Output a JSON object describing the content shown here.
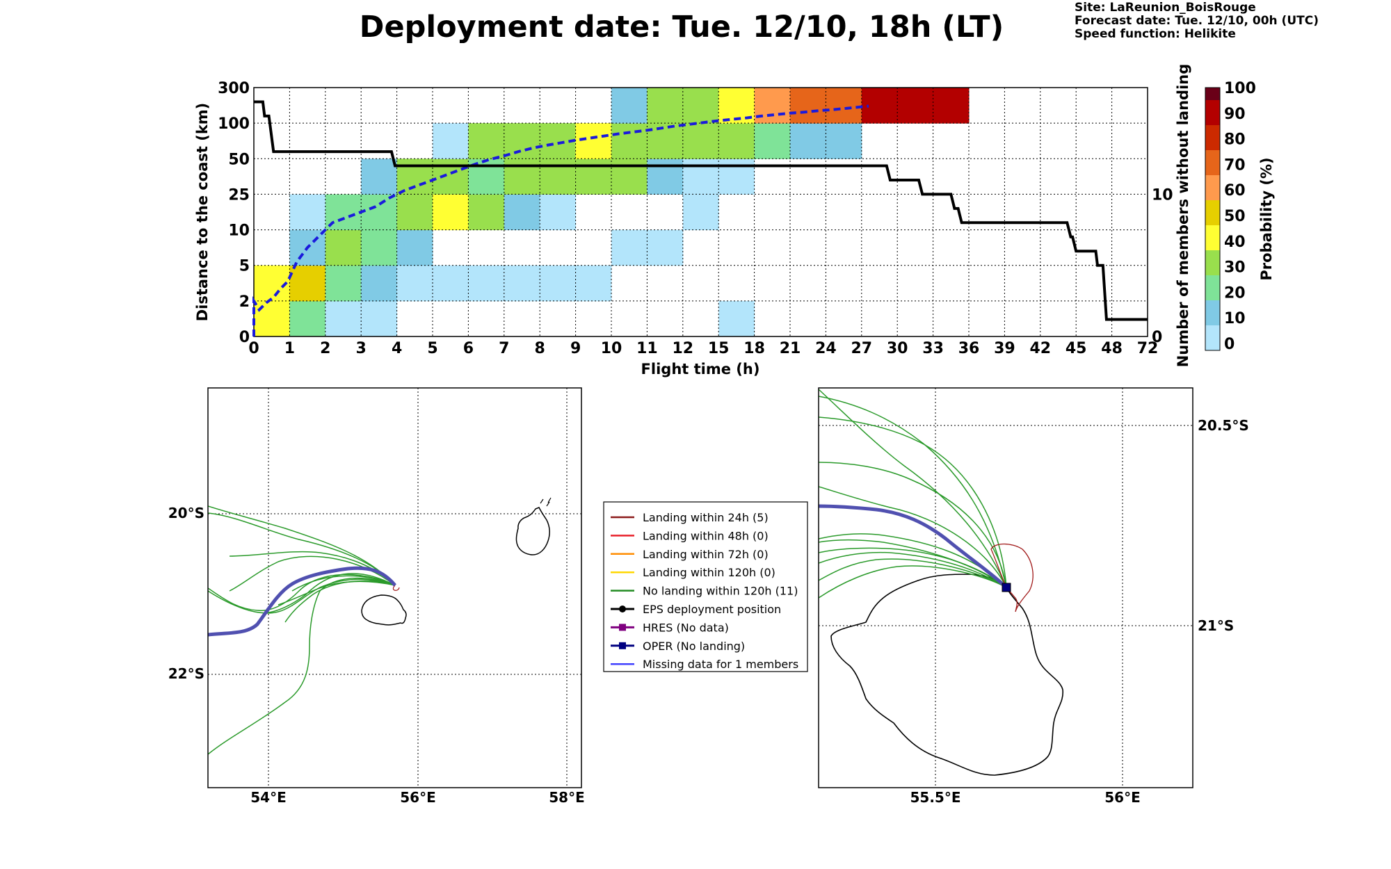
{
  "header": {
    "title": "Deployment date: Tue. 12/10, 18h (LT)",
    "site": "Site: LaReunion_BoisRouge",
    "forecast": "Forecast date: Tue. 12/10, 00h (UTC)",
    "speed": "Speed function: Helikite"
  },
  "chart_data": [
    {
      "type": "heatmap",
      "xlabel": "Flight time (h)",
      "ylabel": "Distance to the coast (km)",
      "y2label": "Number of members without landing",
      "x_ticks": [
        "0",
        "1",
        "2",
        "3",
        "4",
        "5",
        "6",
        "7",
        "8",
        "9",
        "10",
        "11",
        "12",
        "15",
        "18",
        "21",
        "24",
        "27",
        "30",
        "33",
        "36",
        "39",
        "42",
        "45",
        "48",
        "72"
      ],
      "y_ticks": [
        "0",
        "2",
        "5",
        "10",
        "25",
        "50",
        "100",
        "300"
      ],
      "y2_ticks": [
        "0",
        "10"
      ],
      "y2_range": [
        0,
        17.5
      ],
      "colorbar": {
        "label": "Probability (%)",
        "ticks": [
          "0",
          "10",
          "20",
          "30",
          "40",
          "50",
          "60",
          "70",
          "80",
          "90",
          "100"
        ],
        "colors": [
          "#b3e5fb",
          "#80cae5",
          "#7fe398",
          "#99df4d",
          "#ffff33",
          "#e6cf00",
          "#ff9a4d",
          "#e6651a",
          "#cc2a00",
          "#b30000",
          "#6a0018"
        ]
      },
      "cells": [
        {
          "x": 0,
          "y": 0,
          "p": 40
        },
        {
          "x": 0,
          "y": 1,
          "p": 40
        },
        {
          "x": 1,
          "y": 0,
          "p": 20
        },
        {
          "x": 1,
          "y": 1,
          "p": 50
        },
        {
          "x": 1,
          "y": 2,
          "p": 10
        },
        {
          "x": 1,
          "y": 3,
          "p": 0
        },
        {
          "x": 2,
          "y": 0,
          "p": 0
        },
        {
          "x": 2,
          "y": 1,
          "p": 20
        },
        {
          "x": 2,
          "y": 2,
          "p": 30
        },
        {
          "x": 2,
          "y": 3,
          "p": 20
        },
        {
          "x": 3,
          "y": 0,
          "p": 0
        },
        {
          "x": 3,
          "y": 1,
          "p": 10
        },
        {
          "x": 3,
          "y": 2,
          "p": 20
        },
        {
          "x": 3,
          "y": 3,
          "p": 20
        },
        {
          "x": 3,
          "y": 4,
          "p": 10
        },
        {
          "x": 4,
          "y": 1,
          "p": 0
        },
        {
          "x": 4,
          "y": 2,
          "p": 10
        },
        {
          "x": 4,
          "y": 3,
          "p": 30
        },
        {
          "x": 4,
          "y": 4,
          "p": 30
        },
        {
          "x": 5,
          "y": 1,
          "p": 0
        },
        {
          "x": 5,
          "y": 3,
          "p": 40
        },
        {
          "x": 5,
          "y": 4,
          "p": 30
        },
        {
          "x": 5,
          "y": 5,
          "p": 0
        },
        {
          "x": 6,
          "y": 1,
          "p": 0
        },
        {
          "x": 6,
          "y": 3,
          "p": 30
        },
        {
          "x": 6,
          "y": 4,
          "p": 20
        },
        {
          "x": 6,
          "y": 5,
          "p": 30
        },
        {
          "x": 7,
          "y": 1,
          "p": 0
        },
        {
          "x": 7,
          "y": 3,
          "p": 10
        },
        {
          "x": 7,
          "y": 4,
          "p": 30
        },
        {
          "x": 7,
          "y": 5,
          "p": 30
        },
        {
          "x": 8,
          "y": 1,
          "p": 0
        },
        {
          "x": 8,
          "y": 3,
          "p": 0
        },
        {
          "x": 8,
          "y": 4,
          "p": 30
        },
        {
          "x": 8,
          "y": 5,
          "p": 30
        },
        {
          "x": 9,
          "y": 1,
          "p": 0
        },
        {
          "x": 9,
          "y": 4,
          "p": 30
        },
        {
          "x": 9,
          "y": 5,
          "p": 40
        },
        {
          "x": 10,
          "y": 2,
          "p": 0
        },
        {
          "x": 10,
          "y": 4,
          "p": 30
        },
        {
          "x": 10,
          "y": 5,
          "p": 30
        },
        {
          "x": 10,
          "y": 6,
          "p": 10
        },
        {
          "x": 11,
          "y": 2,
          "p": 0
        },
        {
          "x": 11,
          "y": 4,
          "p": 10
        },
        {
          "x": 11,
          "y": 5,
          "p": 30
        },
        {
          "x": 11,
          "y": 6,
          "p": 30
        },
        {
          "x": 12,
          "y": 3,
          "p": 0
        },
        {
          "x": 12,
          "y": 4,
          "p": 0
        },
        {
          "x": 12,
          "y": 5,
          "p": 30
        },
        {
          "x": 12,
          "y": 6,
          "p": 30
        },
        {
          "x": 13,
          "y": 0,
          "p": 0
        },
        {
          "x": 13,
          "y": 4,
          "p": 0
        },
        {
          "x": 13,
          "y": 5,
          "p": 30
        },
        {
          "x": 13,
          "y": 6,
          "p": 40
        },
        {
          "x": 14,
          "y": 5,
          "p": 20
        },
        {
          "x": 14,
          "y": 6,
          "p": 60
        },
        {
          "x": 15,
          "y": 5,
          "p": 10
        },
        {
          "x": 15,
          "y": 6,
          "p": 70
        },
        {
          "x": 16,
          "y": 5,
          "p": 10
        },
        {
          "x": 16,
          "y": 6,
          "p": 70
        },
        {
          "x": 17,
          "y": 6,
          "p": 90
        },
        {
          "x": 18,
          "y": 6,
          "p": 90
        },
        {
          "x": 19,
          "y": 6,
          "p": 90
        }
      ],
      "members_without_landing": {
        "name": "Number of members without landing",
        "points": [
          [
            0,
            16.5
          ],
          [
            0.25,
            16.5
          ],
          [
            0.3,
            15.5
          ],
          [
            0.42,
            15.5
          ],
          [
            0.55,
            13
          ],
          [
            3.85,
            13
          ],
          [
            3.95,
            12
          ],
          [
            17.7,
            12
          ],
          [
            17.8,
            11
          ],
          [
            18.6,
            11
          ],
          [
            18.7,
            10
          ],
          [
            19.5,
            10
          ],
          [
            19.6,
            9
          ],
          [
            19.7,
            9
          ],
          [
            19.8,
            8
          ],
          [
            22.75,
            8
          ],
          [
            22.85,
            7
          ],
          [
            22.9,
            7
          ],
          [
            23,
            6
          ],
          [
            23.55,
            6
          ],
          [
            23.6,
            5
          ],
          [
            23.75,
            5
          ],
          [
            23.85,
            1.2
          ],
          [
            25,
            1.2
          ]
        ]
      },
      "median_distance": {
        "name": "median distance",
        "points": [
          [
            0,
            0
          ],
          [
            0,
            1.0
          ],
          [
            0.15,
            0.75
          ],
          [
            0.35,
            0.95
          ],
          [
            0.55,
            1.1
          ],
          [
            0.75,
            1.35
          ],
          [
            0.95,
            1.55
          ],
          [
            1.2,
            2.1
          ],
          [
            1.5,
            2.5
          ],
          [
            1.8,
            2.8
          ],
          [
            2.2,
            3.2
          ],
          [
            2.6,
            3.35
          ],
          [
            3.0,
            3.5
          ],
          [
            3.4,
            3.65
          ],
          [
            3.8,
            3.9
          ],
          [
            4.2,
            4.1
          ],
          [
            4.6,
            4.25
          ],
          [
            5.0,
            4.4
          ],
          [
            5.4,
            4.55
          ],
          [
            5.8,
            4.7
          ],
          [
            6.2,
            4.85
          ],
          [
            6.6,
            4.98
          ],
          [
            7.0,
            5.08
          ],
          [
            7.4,
            5.2
          ],
          [
            7.8,
            5.3
          ],
          [
            8.2,
            5.38
          ],
          [
            8.6,
            5.45
          ],
          [
            9.0,
            5.52
          ],
          [
            9.4,
            5.58
          ],
          [
            9.8,
            5.64
          ],
          [
            10.2,
            5.7
          ],
          [
            10.6,
            5.75
          ],
          [
            11.0,
            5.8
          ],
          [
            11.4,
            5.86
          ],
          [
            11.8,
            5.92
          ],
          [
            12.2,
            5.97
          ],
          [
            12.6,
            6.02
          ],
          [
            13.0,
            6.07
          ],
          [
            13.4,
            6.11
          ],
          [
            13.8,
            6.15
          ],
          [
            14.2,
            6.2
          ],
          [
            14.6,
            6.24
          ],
          [
            15.0,
            6.28
          ],
          [
            15.4,
            6.31
          ],
          [
            15.8,
            6.35
          ],
          [
            16.2,
            6.38
          ],
          [
            16.6,
            6.42
          ],
          [
            17.0,
            6.46
          ],
          [
            17.2,
            6.48
          ]
        ]
      }
    },
    {
      "type": "map",
      "name": "regional",
      "x_ticks": [
        "54°E",
        "56°E",
        "58°E"
      ],
      "y_ticks": [
        "20°S",
        "22°S"
      ]
    },
    {
      "type": "map",
      "name": "zoom",
      "x_ticks": [
        "55.5°E",
        "56°E"
      ],
      "y_ticks": [
        "20.5°S",
        "21°S"
      ]
    }
  ],
  "legend": [
    {
      "label": "Landing within 24h (5)",
      "color": "#8b1a1a",
      "marker": "none"
    },
    {
      "label": "Landing within 48h (0)",
      "color": "#e8202a",
      "marker": "none"
    },
    {
      "label": "Landing within 72h (0)",
      "color": "#ff8c00",
      "marker": "none"
    },
    {
      "label": "Landing within 120h (0)",
      "color": "#ffd700",
      "marker": "none"
    },
    {
      "label": "No landing within 120h (11)",
      "color": "#228b22",
      "marker": "none"
    },
    {
      "label": "EPS deployment position",
      "color": "#000000",
      "marker": "circle"
    },
    {
      "label": "HRES (No data)",
      "color": "#800080",
      "marker": "square"
    },
    {
      "label": "OPER (No landing)",
      "color": "#000080",
      "marker": "square"
    },
    {
      "label": "Missing data for 1 members",
      "color": "#4040ff",
      "marker": "none"
    }
  ]
}
